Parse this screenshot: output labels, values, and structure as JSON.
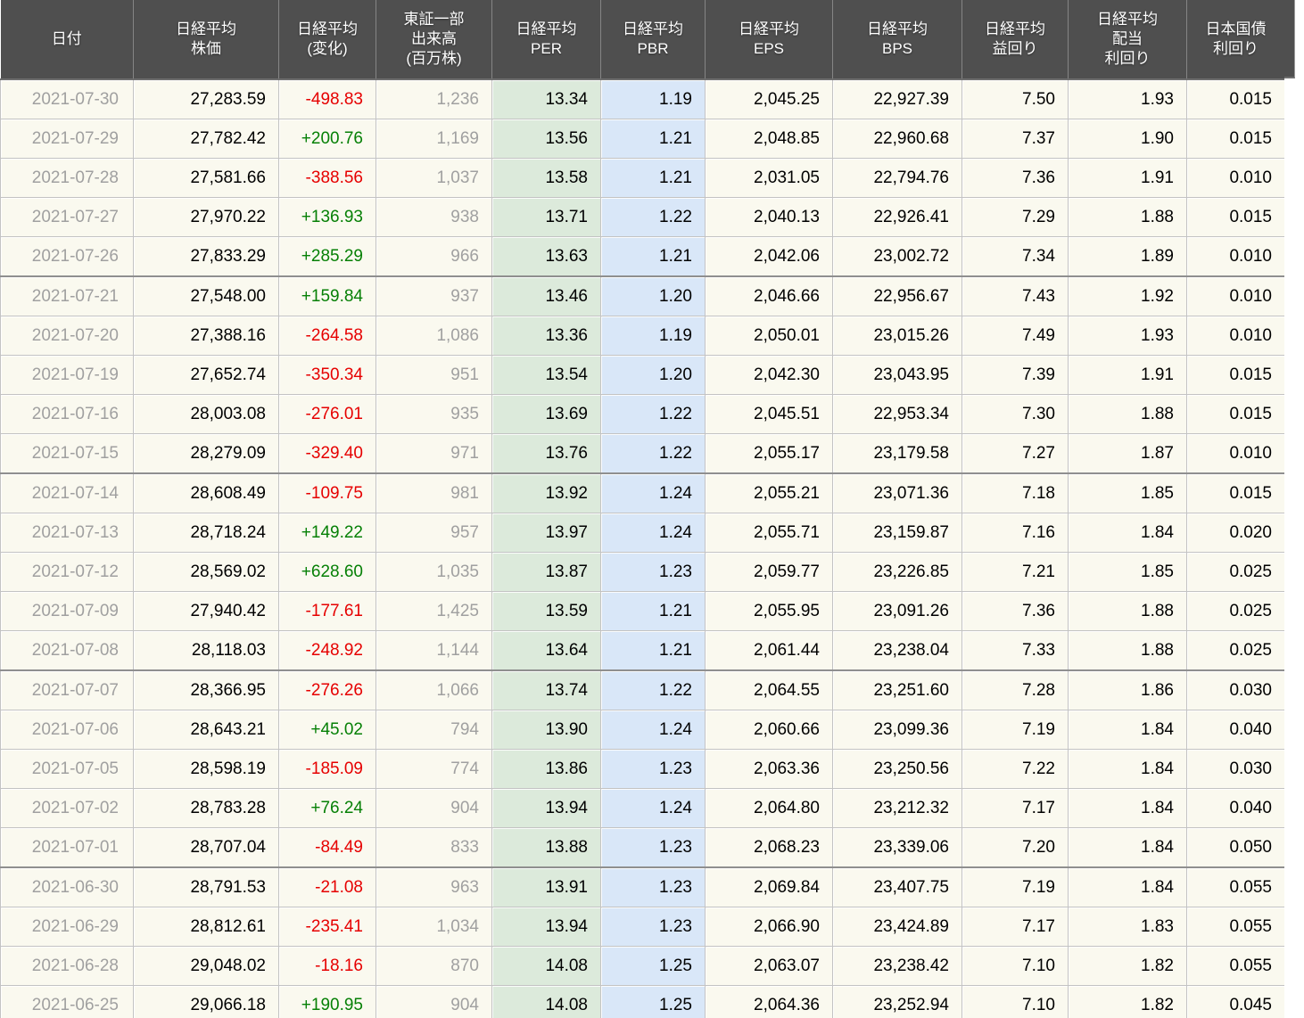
{
  "table": {
    "title": "nikkei-index-valuation-table",
    "columns": [
      {
        "id": "date",
        "label": "日付"
      },
      {
        "id": "price",
        "label": "日経平均\n株価"
      },
      {
        "id": "change",
        "label": "日経平均\n(変化)"
      },
      {
        "id": "volume",
        "label": "東証一部\n出来高\n(百万株)"
      },
      {
        "id": "per",
        "label": "日経平均\nPER"
      },
      {
        "id": "pbr",
        "label": "日経平均\nPBR"
      },
      {
        "id": "eps",
        "label": "日経平均\nEPS"
      },
      {
        "id": "bps",
        "label": "日経平均\nBPS"
      },
      {
        "id": "earnings-yield",
        "label": "日経平均\n益回り"
      },
      {
        "id": "dividend-yield",
        "label": "日経平均\n配当\n利回り"
      },
      {
        "id": "jgb-yield",
        "label": "日本国債\n利回り"
      }
    ],
    "rows": [
      [
        "2021-07-30",
        "27,283.59",
        "-498.83",
        "1,236",
        "13.34",
        "1.19",
        "2,045.25",
        "22,927.39",
        "7.50",
        "1.93",
        "0.015"
      ],
      [
        "2021-07-29",
        "27,782.42",
        "+200.76",
        "1,169",
        "13.56",
        "1.21",
        "2,048.85",
        "22,960.68",
        "7.37",
        "1.90",
        "0.015"
      ],
      [
        "2021-07-28",
        "27,581.66",
        "-388.56",
        "1,037",
        "13.58",
        "1.21",
        "2,031.05",
        "22,794.76",
        "7.36",
        "1.91",
        "0.010"
      ],
      [
        "2021-07-27",
        "27,970.22",
        "+136.93",
        "938",
        "13.71",
        "1.22",
        "2,040.13",
        "22,926.41",
        "7.29",
        "1.88",
        "0.015"
      ],
      [
        "2021-07-26",
        "27,833.29",
        "+285.29",
        "966",
        "13.63",
        "1.21",
        "2,042.06",
        "23,002.72",
        "7.34",
        "1.89",
        "0.010"
      ],
      [
        "2021-07-21",
        "27,548.00",
        "+159.84",
        "937",
        "13.46",
        "1.20",
        "2,046.66",
        "22,956.67",
        "7.43",
        "1.92",
        "0.010"
      ],
      [
        "2021-07-20",
        "27,388.16",
        "-264.58",
        "1,086",
        "13.36",
        "1.19",
        "2,050.01",
        "23,015.26",
        "7.49",
        "1.93",
        "0.010"
      ],
      [
        "2021-07-19",
        "27,652.74",
        "-350.34",
        "951",
        "13.54",
        "1.20",
        "2,042.30",
        "23,043.95",
        "7.39",
        "1.91",
        "0.015"
      ],
      [
        "2021-07-16",
        "28,003.08",
        "-276.01",
        "935",
        "13.69",
        "1.22",
        "2,045.51",
        "22,953.34",
        "7.30",
        "1.88",
        "0.015"
      ],
      [
        "2021-07-15",
        "28,279.09",
        "-329.40",
        "971",
        "13.76",
        "1.22",
        "2,055.17",
        "23,179.58",
        "7.27",
        "1.87",
        "0.010"
      ],
      [
        "2021-07-14",
        "28,608.49",
        "-109.75",
        "981",
        "13.92",
        "1.24",
        "2,055.21",
        "23,071.36",
        "7.18",
        "1.85",
        "0.015"
      ],
      [
        "2021-07-13",
        "28,718.24",
        "+149.22",
        "957",
        "13.97",
        "1.24",
        "2,055.71",
        "23,159.87",
        "7.16",
        "1.84",
        "0.020"
      ],
      [
        "2021-07-12",
        "28,569.02",
        "+628.60",
        "1,035",
        "13.87",
        "1.23",
        "2,059.77",
        "23,226.85",
        "7.21",
        "1.85",
        "0.025"
      ],
      [
        "2021-07-09",
        "27,940.42",
        "-177.61",
        "1,425",
        "13.59",
        "1.21",
        "2,055.95",
        "23,091.26",
        "7.36",
        "1.88",
        "0.025"
      ],
      [
        "2021-07-08",
        "28,118.03",
        "-248.92",
        "1,144",
        "13.64",
        "1.21",
        "2,061.44",
        "23,238.04",
        "7.33",
        "1.88",
        "0.025"
      ],
      [
        "2021-07-07",
        "28,366.95",
        "-276.26",
        "1,066",
        "13.74",
        "1.22",
        "2,064.55",
        "23,251.60",
        "7.28",
        "1.86",
        "0.030"
      ],
      [
        "2021-07-06",
        "28,643.21",
        "+45.02",
        "794",
        "13.90",
        "1.24",
        "2,060.66",
        "23,099.36",
        "7.19",
        "1.84",
        "0.040"
      ],
      [
        "2021-07-05",
        "28,598.19",
        "-185.09",
        "774",
        "13.86",
        "1.23",
        "2,063.36",
        "23,250.56",
        "7.22",
        "1.84",
        "0.030"
      ],
      [
        "2021-07-02",
        "28,783.28",
        "+76.24",
        "904",
        "13.94",
        "1.24",
        "2,064.80",
        "23,212.32",
        "7.17",
        "1.84",
        "0.040"
      ],
      [
        "2021-07-01",
        "28,707.04",
        "-84.49",
        "833",
        "13.88",
        "1.23",
        "2,068.23",
        "23,339.06",
        "7.20",
        "1.84",
        "0.050"
      ],
      [
        "2021-06-30",
        "28,791.53",
        "-21.08",
        "963",
        "13.91",
        "1.23",
        "2,069.84",
        "23,407.75",
        "7.19",
        "1.84",
        "0.055"
      ],
      [
        "2021-06-29",
        "28,812.61",
        "-235.41",
        "1,034",
        "13.94",
        "1.23",
        "2,066.90",
        "23,424.89",
        "7.17",
        "1.83",
        "0.055"
      ],
      [
        "2021-06-28",
        "29,048.02",
        "-18.16",
        "870",
        "14.08",
        "1.25",
        "2,063.07",
        "23,238.42",
        "7.10",
        "1.82",
        "0.055"
      ],
      [
        "2021-06-25",
        "29,066.18",
        "+190.95",
        "904",
        "14.08",
        "1.25",
        "2,064.36",
        "23,252.94",
        "7.10",
        "1.82",
        "0.045"
      ]
    ],
    "group_size": 5
  },
  "colors": {
    "header_bg": "#4f4f4f",
    "row_bg": "#faf9ef",
    "per_column_bg": "#dceadb",
    "pbr_column_bg": "#d9e7f8",
    "positive_change": "#068006",
    "negative_change": "#e60000",
    "muted_text": "#a0a0a0"
  }
}
